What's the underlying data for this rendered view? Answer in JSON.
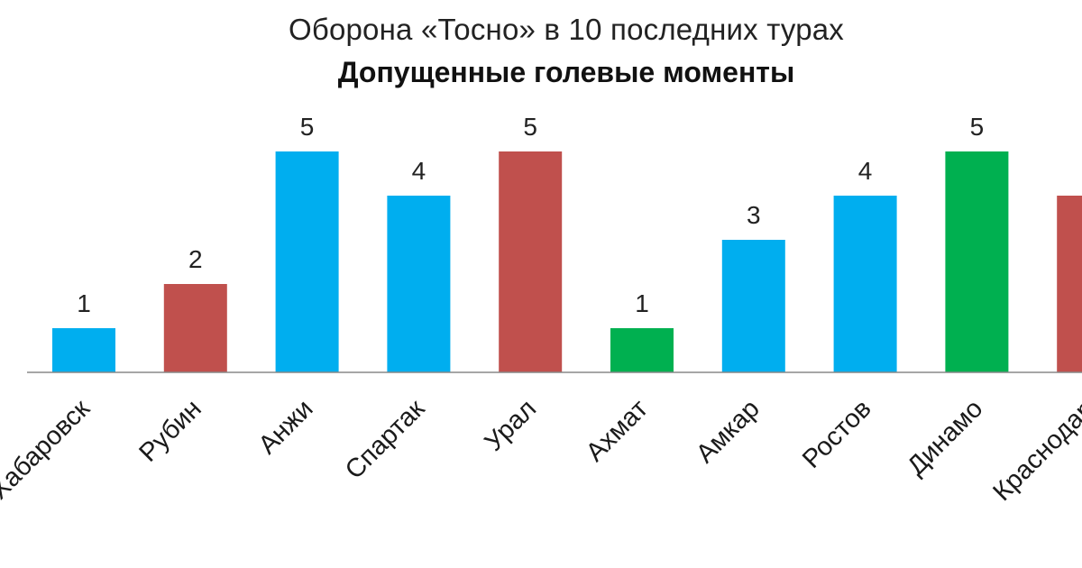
{
  "chart_data": {
    "type": "bar",
    "title": "Оборона «Тосно» в 10 последних турах",
    "subtitle": "Допущенные голевые моменты",
    "categories": [
      "Хабаровск",
      "Рубин",
      "Анжи",
      "Спартак",
      "Урал",
      "Ахмат",
      "Амкар",
      "Ростов",
      "Динамо",
      "Краснодар"
    ],
    "values": [
      1,
      2,
      5,
      4,
      5,
      1,
      3,
      4,
      5,
      4
    ],
    "bar_colors": [
      "#00AEEF",
      "#C0504D",
      "#00AEEF",
      "#00AEEF",
      "#C0504D",
      "#00B050",
      "#00AEEF",
      "#00AEEF",
      "#00B050",
      "#C0504D"
    ],
    "ylim": [
      0,
      5
    ],
    "grid": false,
    "legend": "none"
  }
}
